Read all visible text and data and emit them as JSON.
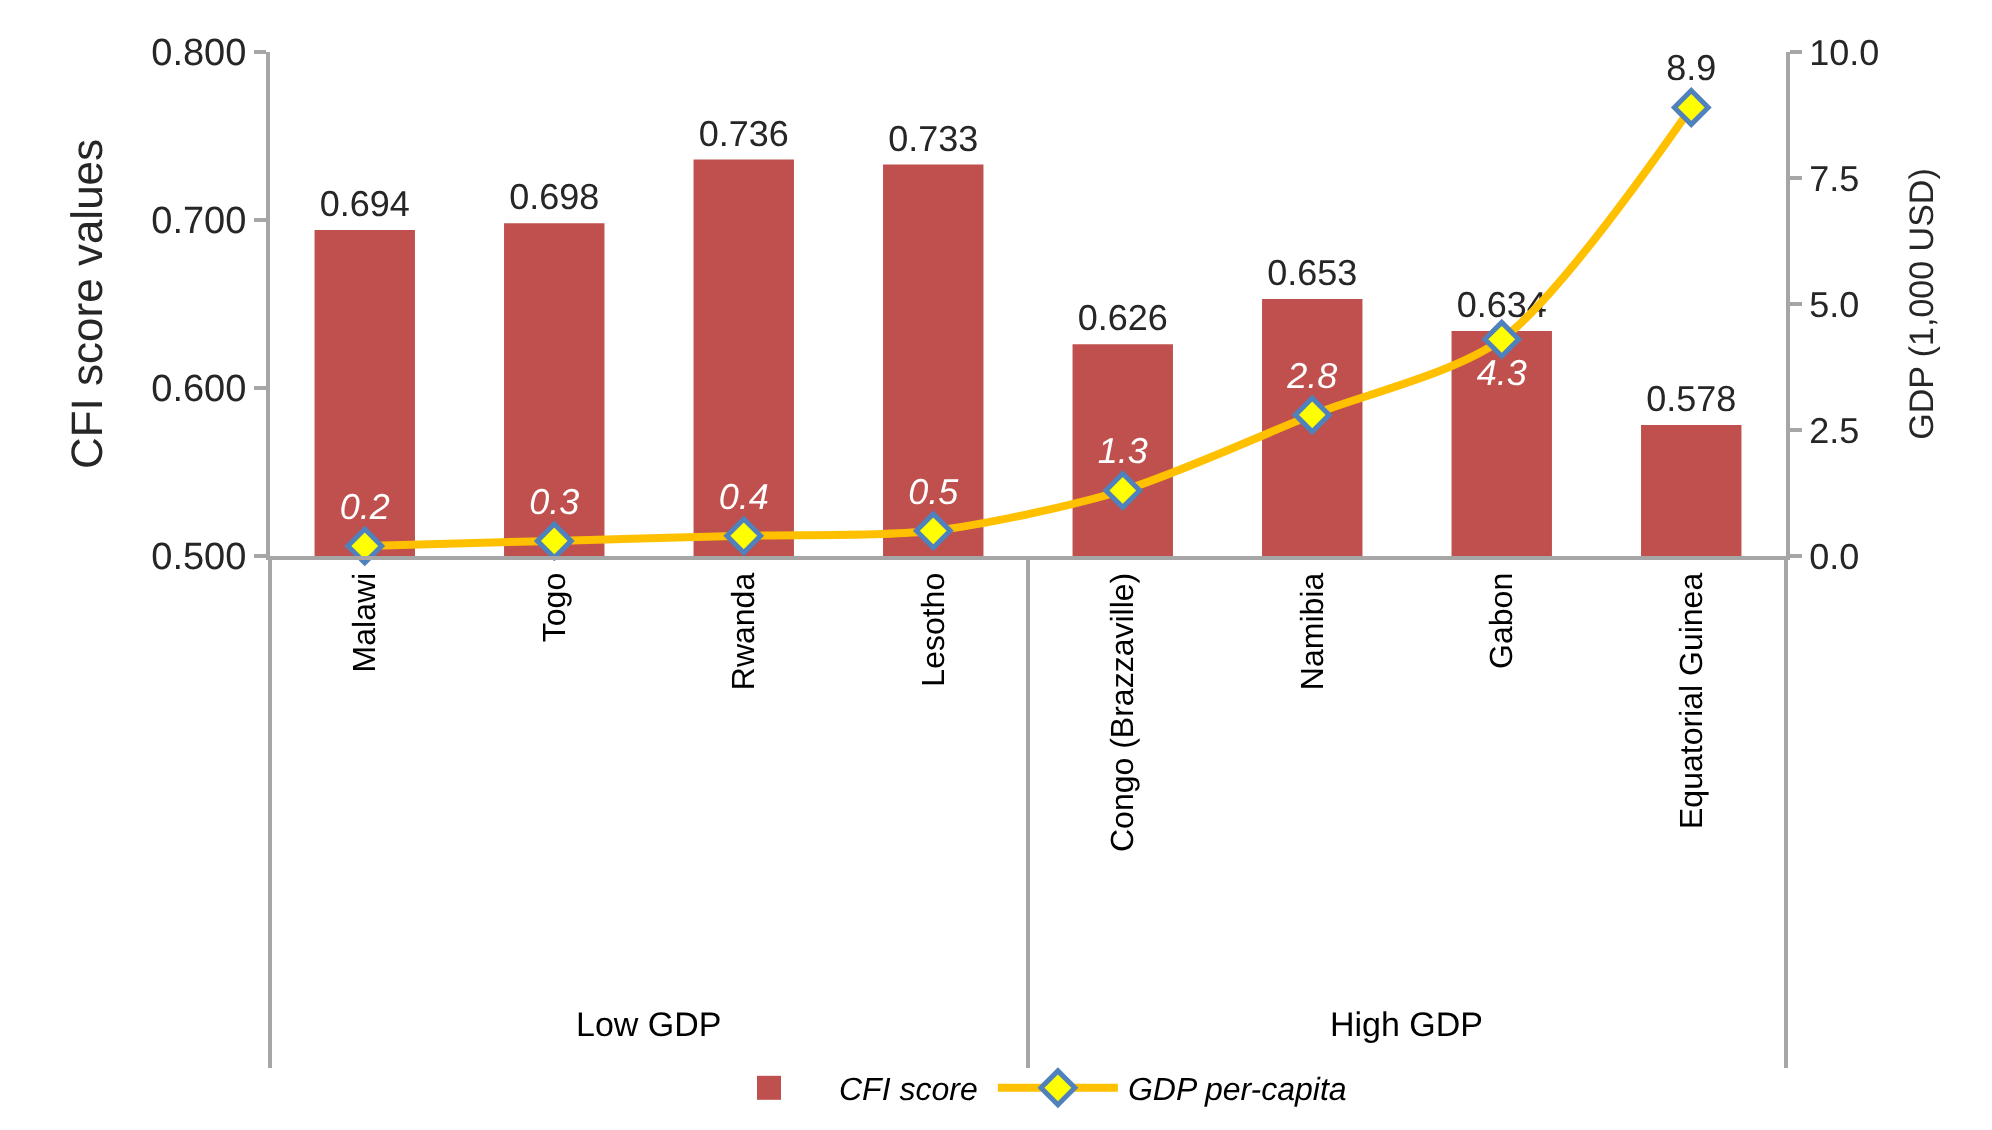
{
  "chart_data": {
    "type": "bar",
    "categories": [
      "Malawi",
      "Togo",
      "Rwanda",
      "Lesotho",
      "Congo (Brazzaville)",
      "Namibia",
      "Gabon",
      "Equatorial Guinea"
    ],
    "ylabel": "CFI score values",
    "y2label": "GDP (1,000 USD)",
    "ylim": [
      0.5,
      0.8
    ],
    "yticks": [
      {
        "value": 0.5,
        "label": "0.500"
      },
      {
        "value": 0.6,
        "label": "0.600"
      },
      {
        "value": 0.7,
        "label": "0.700"
      },
      {
        "value": 0.8,
        "label": "0.800"
      }
    ],
    "y2lim": [
      0,
      10
    ],
    "y2ticks": [
      {
        "value": 0,
        "label": "0.0"
      },
      2.5,
      {
        "value": 5,
        "label": "5.0"
      },
      7.5,
      {
        "value": 10,
        "label": "10.0"
      }
    ],
    "series": [
      {
        "name": "CFI score",
        "color": "#c0504d",
        "values": [
          0.694,
          0.698,
          0.736,
          0.733,
          0.626,
          0.653,
          0.634,
          0.578
        ]
      },
      {
        "name": "GDP per-capita",
        "type": "line",
        "axis": "y2",
        "color": "#ffc000",
        "values": [
          0.2,
          0.3,
          0.4,
          0.5,
          1.3,
          2.8,
          4.3,
          8.9
        ]
      }
    ],
    "marker": "diamond",
    "data_labels": true,
    "legend": "bottom",
    "annotations": [
      "Low GDP",
      "High GDP"
    ]
  }
}
